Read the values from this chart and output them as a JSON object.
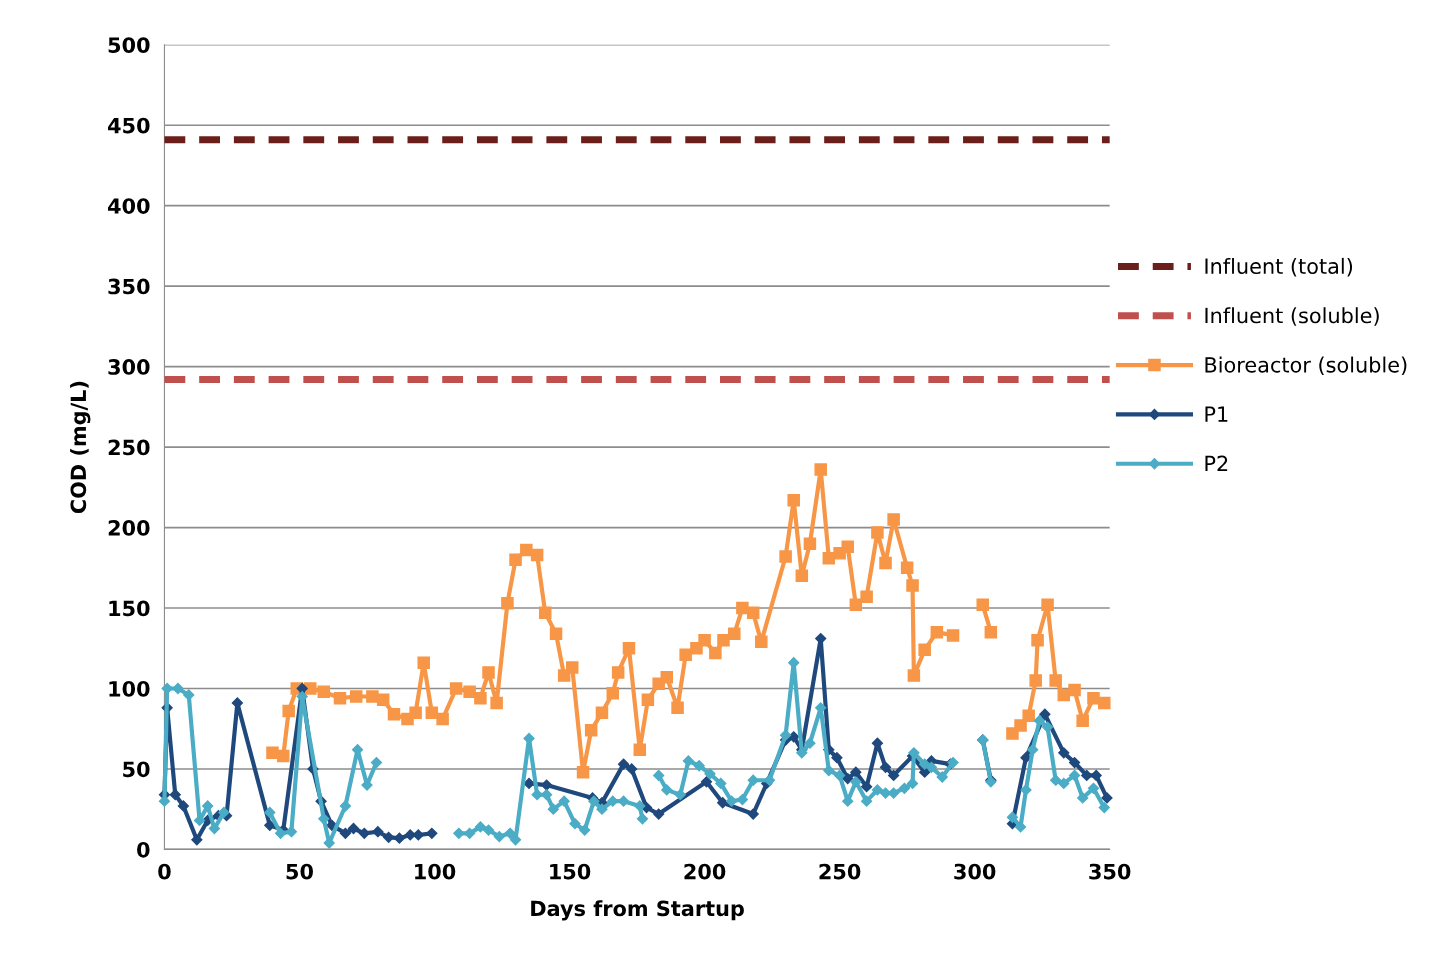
{
  "chart_data": {
    "type": "line",
    "xlabel": "Days from Startup",
    "ylabel": "COD (mg/L)",
    "xlim": [
      0,
      350
    ],
    "xticks": [
      0,
      50,
      100,
      150,
      200,
      250,
      300,
      350
    ],
    "ylim": [
      0,
      500
    ],
    "yticks": [
      0,
      50,
      100,
      150,
      200,
      250,
      300,
      350,
      400,
      450,
      500
    ],
    "grid": "y",
    "legend": "right",
    "series": [
      {
        "name": "Influent (total)",
        "color": "#6b1f1a",
        "line_style": "dashed",
        "marker": "none",
        "x": [
          0,
          350
        ],
        "values": [
          441,
          441
        ]
      },
      {
        "name": "Influent (soluble)",
        "color": "#c0504d",
        "line_style": "dashed",
        "marker": "none",
        "x": [
          0,
          350
        ],
        "values": [
          292,
          292
        ]
      },
      {
        "name": "Bioreactor (soluble)",
        "color": "#f79646",
        "line_style": "solid",
        "marker": "square",
        "x": [
          40,
          44,
          46,
          49,
          54,
          59,
          65,
          71,
          77,
          81,
          85,
          90,
          93,
          96,
          99,
          103,
          108,
          113,
          117,
          120,
          123,
          127,
          130,
          134,
          138,
          141,
          145,
          148,
          151,
          155,
          158,
          162,
          166,
          168,
          172,
          176,
          179,
          183,
          186,
          190,
          193,
          197,
          200,
          204,
          207,
          211,
          214,
          218,
          221,
          230,
          233,
          236,
          239,
          243,
          246,
          250,
          253,
          256,
          260,
          264,
          267,
          270,
          275,
          277,
          277.5,
          281.5,
          286,
          292,
          297,
          303,
          306,
          310,
          314,
          317,
          320,
          322.6,
          323.3,
          327,
          330,
          333,
          337,
          340,
          344,
          348
        ],
        "values": [
          60,
          58,
          86,
          100,
          100,
          98,
          94,
          95,
          95,
          93,
          84,
          81,
          85,
          116,
          85,
          81,
          100,
          98,
          94,
          110,
          91,
          153,
          180,
          186,
          183,
          147,
          134,
          108,
          113,
          48,
          74,
          85,
          97,
          110,
          125,
          62,
          93,
          103,
          107,
          88,
          121,
          125,
          130,
          122,
          130,
          134,
          150,
          147,
          129,
          182,
          217,
          170,
          190,
          236,
          181,
          184,
          188,
          152,
          157,
          197,
          178,
          205,
          175,
          164,
          108,
          124,
          135,
          133,
          null,
          152,
          135,
          null,
          72,
          77,
          83,
          105,
          130,
          152,
          105,
          96,
          99,
          80,
          94,
          91
        ]
      },
      {
        "name": "P1",
        "color": "#1f497d",
        "line_style": "solid",
        "marker": "diamond",
        "x": [
          0,
          1,
          4,
          7,
          12,
          16,
          20,
          23,
          27,
          39,
          44,
          51,
          55,
          58,
          62,
          67,
          70,
          74,
          79,
          83,
          87,
          91,
          94,
          99,
          115,
          135,
          141.5,
          158.5,
          162,
          170,
          173,
          178.5,
          183,
          200.7,
          206.7,
          218,
          223,
          230,
          233,
          236,
          243,
          246,
          249,
          253,
          256,
          260,
          264,
          267,
          270,
          277,
          281.5,
          284,
          291,
          297,
          303,
          306,
          310,
          314,
          319,
          326,
          333,
          337,
          341.5,
          345,
          349
        ],
        "values": [
          34,
          88,
          34,
          27,
          6,
          18,
          21,
          21,
          91,
          15,
          12,
          100,
          50,
          30,
          15,
          10,
          13,
          10,
          11,
          7.5,
          7,
          9,
          9,
          10,
          null,
          41,
          40,
          32,
          29,
          53,
          50,
          26,
          22,
          42,
          29,
          22,
          41,
          68,
          70,
          62,
          131,
          62,
          57,
          44,
          48,
          39,
          66,
          51,
          46,
          58,
          48,
          55,
          53,
          null,
          68,
          43,
          null,
          16,
          57,
          84,
          60,
          54,
          46,
          46,
          32
        ]
      },
      {
        "name": "P2",
        "color": "#4bacc6",
        "line_style": "solid",
        "marker": "diamond",
        "x": [
          0,
          1,
          5,
          9,
          13,
          16,
          18.5,
          22,
          30,
          39,
          43,
          47,
          51,
          59,
          61,
          67,
          71.5,
          75,
          78.5,
          94,
          109,
          113,
          117,
          120,
          124,
          128,
          130,
          135,
          138,
          141.5,
          144,
          148,
          152,
          155.6,
          159,
          162,
          166,
          170,
          176,
          177,
          180,
          183,
          186,
          191,
          194,
          198,
          202,
          206,
          210,
          214,
          218,
          224,
          230,
          233,
          236,
          239,
          243,
          246,
          250,
          253,
          256,
          260,
          264,
          267,
          270,
          274,
          277,
          277.5,
          281.5,
          284,
          288,
          292,
          297,
          303,
          306,
          310,
          314,
          317,
          319,
          321.5,
          324,
          327,
          330,
          333,
          337,
          340,
          344,
          348
        ],
        "values": [
          30,
          100,
          100,
          96,
          18,
          27,
          13,
          23,
          null,
          23,
          10,
          11,
          95,
          19,
          4,
          27,
          62,
          40,
          54,
          null,
          10,
          10,
          14,
          12,
          8,
          10,
          6,
          69,
          34,
          34,
          25,
          30,
          16,
          12,
          30,
          25,
          30,
          30,
          27,
          19,
          null,
          46,
          37,
          34,
          55,
          52,
          47,
          41,
          30,
          31,
          43,
          43,
          71,
          116,
          60,
          66,
          88,
          49,
          46,
          30,
          42,
          30,
          37,
          35,
          35,
          38,
          41,
          60,
          53,
          51,
          45,
          54,
          null,
          68,
          42,
          null,
          20,
          14,
          37,
          62,
          80,
          76,
          43,
          41,
          46,
          32,
          38,
          26
        ]
      }
    ]
  }
}
